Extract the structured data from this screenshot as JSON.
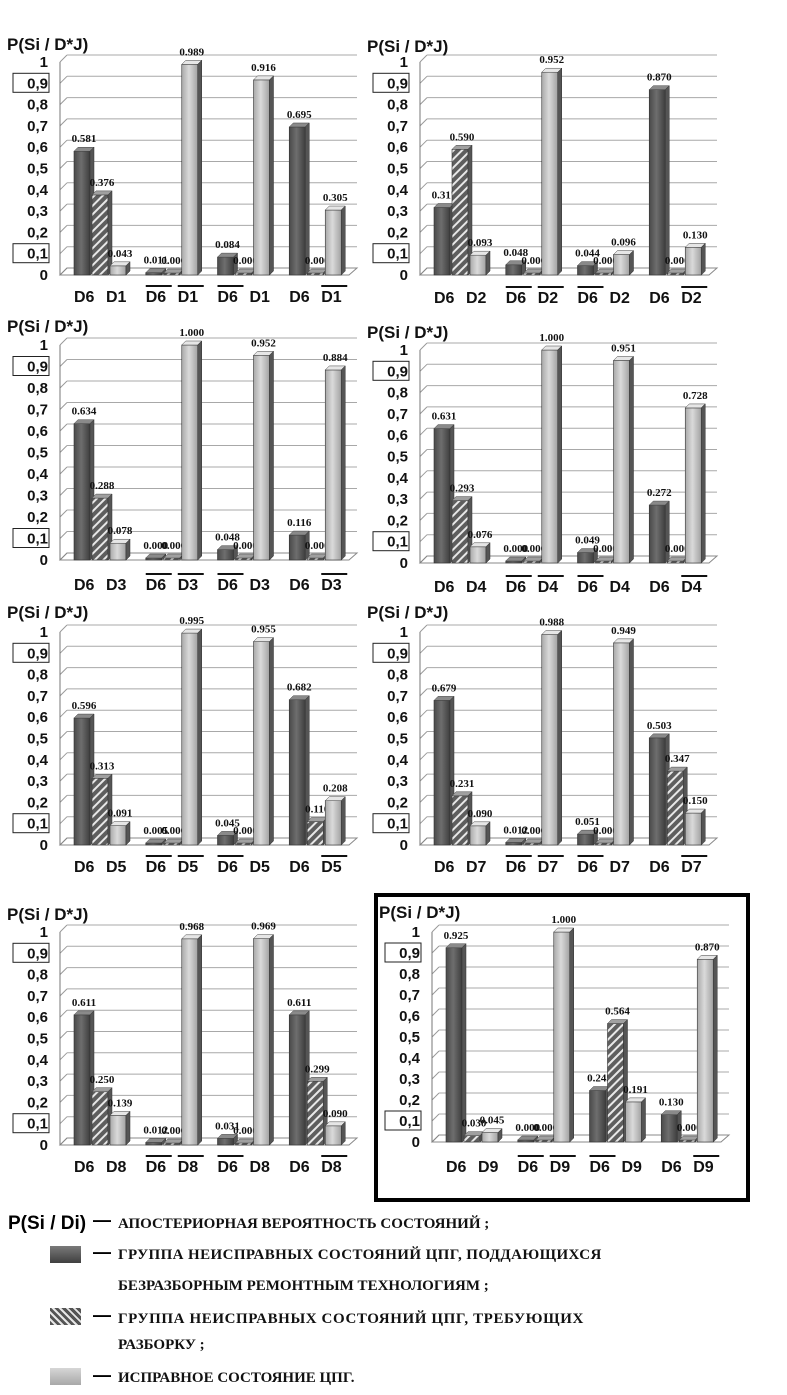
{
  "chart_data": [
    {
      "type": "bar",
      "title": "P(Si / D*J)",
      "group_labels": [
        "D6 D1",
        "D6 D1",
        "D6 D1",
        "D6 D1"
      ],
      "overlines": [
        [
          false,
          false
        ],
        [
          true,
          true
        ],
        [
          true,
          false
        ],
        [
          false,
          true
        ]
      ],
      "sub": "1",
      "series": [
        {
          "values": [
            0.581,
            0.011,
            0.084,
            0.695
          ]
        },
        {
          "values": [
            0.376,
            0.0,
            0.0,
            0.0
          ]
        },
        {
          "values": [
            0.043,
            0.989,
            0.916,
            0.305
          ]
        }
      ],
      "y_ticks": [
        "0",
        "0,1",
        "0,2",
        "0,3",
        "0,4",
        "0,5",
        "0,6",
        "0,7",
        "0,8",
        "0,9",
        "1"
      ],
      "ylim": [
        0,
        1
      ]
    },
    {
      "type": "bar",
      "title": "P(Si / D*J)",
      "group_labels": [
        "D6 D2",
        "D6 D2",
        "D6 D2",
        "D6 D2"
      ],
      "overlines": [
        [
          false,
          false
        ],
        [
          true,
          true
        ],
        [
          true,
          false
        ],
        [
          false,
          true
        ]
      ],
      "sub": "2",
      "series": [
        {
          "values": [
            0.317,
            0.048,
            0.044,
            0.87
          ]
        },
        {
          "values": [
            0.59,
            0.0,
            0.0,
            0.0
          ]
        },
        {
          "values": [
            0.093,
            0.952,
            0.096,
            0.13
          ]
        }
      ],
      "y_ticks": [
        "0",
        "0,1",
        "0,2",
        "0,3",
        "0,4",
        "0,5",
        "0,6",
        "0,7",
        "0,8",
        "0,9",
        "1"
      ],
      "ylim": [
        0,
        1
      ]
    },
    {
      "type": "bar",
      "title": "P(Si / D*J)",
      "group_labels": [
        "D6 D3",
        "D6 D3",
        "D6 D3",
        "D6 D3"
      ],
      "overlines": [
        [
          false,
          false
        ],
        [
          true,
          true
        ],
        [
          true,
          false
        ],
        [
          false,
          true
        ]
      ],
      "sub": "3",
      "series": [
        {
          "values": [
            0.634,
            0.0,
            0.048,
            0.116
          ]
        },
        {
          "values": [
            0.288,
            0.0,
            0.0,
            0.0
          ]
        },
        {
          "values": [
            0.078,
            1.0,
            0.952,
            0.884
          ]
        }
      ],
      "y_ticks": [
        "0",
        "0,1",
        "0,2",
        "0,3",
        "0,4",
        "0,5",
        "0,6",
        "0,7",
        "0,8",
        "0,9",
        "1"
      ],
      "ylim": [
        0,
        1
      ]
    },
    {
      "type": "bar",
      "title": "P(Si / D*J)",
      "group_labels": [
        "D6 D4",
        "D6 D4",
        "D6 D4",
        "D6 D4"
      ],
      "overlines": [
        [
          false,
          false
        ],
        [
          true,
          true
        ],
        [
          true,
          false
        ],
        [
          false,
          true
        ]
      ],
      "sub": "4",
      "series": [
        {
          "values": [
            0.631,
            0.0,
            0.049,
            0.272
          ]
        },
        {
          "values": [
            0.293,
            0.0,
            0.0,
            0.0
          ]
        },
        {
          "values": [
            0.076,
            1.0,
            0.951,
            0.728
          ]
        }
      ],
      "y_ticks": [
        "0",
        "0,1",
        "0,2",
        "0,3",
        "0,4",
        "0,5",
        "0,6",
        "0,7",
        "0,8",
        "0,9",
        "1"
      ],
      "ylim": [
        0,
        1
      ]
    },
    {
      "type": "bar",
      "title": "P(Si / D*J)",
      "group_labels": [
        "D6 D5",
        "D6 D5",
        "D6 D5",
        "D6 D5"
      ],
      "overlines": [
        [
          false,
          false
        ],
        [
          true,
          true
        ],
        [
          true,
          false
        ],
        [
          false,
          true
        ]
      ],
      "sub": "5",
      "series": [
        {
          "values": [
            0.596,
            0.005,
            0.045,
            0.682
          ]
        },
        {
          "values": [
            0.313,
            0.0,
            0.0,
            0.11
          ]
        },
        {
          "values": [
            0.091,
            0.995,
            0.955,
            0.208
          ]
        }
      ],
      "y_ticks": [
        "0",
        "0,1",
        "0,2",
        "0,3",
        "0,4",
        "0,5",
        "0,6",
        "0,7",
        "0,8",
        "0,9",
        "1"
      ],
      "ylim": [
        0,
        1
      ]
    },
    {
      "type": "bar",
      "title": "P(Si / D*J)",
      "group_labels": [
        "D6 D7",
        "D6 D7",
        "D6 D7",
        "D6 D7"
      ],
      "overlines": [
        [
          false,
          false
        ],
        [
          true,
          true
        ],
        [
          true,
          false
        ],
        [
          false,
          true
        ]
      ],
      "sub": "7",
      "series": [
        {
          "values": [
            0.679,
            0.012,
            0.051,
            0.503
          ]
        },
        {
          "values": [
            0.231,
            0.0,
            0.0,
            0.347
          ]
        },
        {
          "values": [
            0.09,
            0.988,
            0.949,
            0.15
          ]
        }
      ],
      "y_ticks": [
        "0",
        "0,1",
        "0,2",
        "0,3",
        "0,4",
        "0,5",
        "0,6",
        "0,7",
        "0,8",
        "0,9",
        "1"
      ],
      "ylim": [
        0,
        1
      ]
    },
    {
      "type": "bar",
      "title": "P(Si / D*J)",
      "group_labels": [
        "D6 D8",
        "D6 D8",
        "D6 D8",
        "D6 D8"
      ],
      "overlines": [
        [
          false,
          false
        ],
        [
          true,
          true
        ],
        [
          true,
          false
        ],
        [
          false,
          true
        ]
      ],
      "sub": "8",
      "series": [
        {
          "values": [
            0.611,
            0.012,
            0.031,
            0.611
          ]
        },
        {
          "values": [
            0.25,
            0.0,
            0.0,
            0.299
          ]
        },
        {
          "values": [
            0.139,
            0.968,
            0.969,
            0.09
          ]
        }
      ],
      "y_ticks": [
        "0",
        "0,1",
        "0,2",
        "0,3",
        "0,4",
        "0,5",
        "0,6",
        "0,7",
        "0,8",
        "0,9",
        "1"
      ],
      "ylim": [
        0,
        1
      ]
    },
    {
      "type": "bar",
      "title": "P(Si / D*J)",
      "group_labels": [
        "D6 D9",
        "D6 D9",
        "D6 D9",
        "D6 D9"
      ],
      "overlines": [
        [
          false,
          false
        ],
        [
          true,
          true
        ],
        [
          true,
          false
        ],
        [
          false,
          true
        ]
      ],
      "sub": "9",
      "series": [
        {
          "values": [
            0.925,
            0.0,
            0.245,
            0.13
          ]
        },
        {
          "values": [
            0.03,
            0.0,
            0.564,
            0.0
          ]
        },
        {
          "values": [
            0.045,
            1.0,
            0.191,
            0.87
          ]
        }
      ],
      "y_ticks": [
        "0",
        "0,1",
        "0,2",
        "0,3",
        "0,4",
        "0,5",
        "0,6",
        "0,7",
        "0,8",
        "0,9",
        "1"
      ],
      "ylim": [
        0,
        1
      ]
    }
  ],
  "legend": {
    "title": "P(Si / Di)",
    "title_text": "АПОСТЕРИОРНАЯ ВЕРОЯТНОСТЬ СОСТОЯНИЙ ;",
    "item1_line1": "ГРУППА НЕИСПРАВНЫХ СОСТОЯНИЙ ЦПГ, ПОДДАЮЩИХСЯ",
    "item1_line2": "БЕЗРАЗБОРНЫМ РЕМОНТНЫМ ТЕХНОЛОГИЯМ ;",
    "item2_line1": "ГРУППА НЕИСПРАВНЫХ СОСТОЯНИЙ ЦПГ, ТРЕБУЮЩИХ",
    "item2_line2": "РАЗБОРКУ ;",
    "item3": "ИСПРАВНОЕ СОСТОЯНИЕ ЦПГ.",
    "dash": "—"
  },
  "colors": {
    "dark": "#5a5a5a",
    "light": "#bdbdbd",
    "hatch_bg": "#6a6a6a"
  }
}
